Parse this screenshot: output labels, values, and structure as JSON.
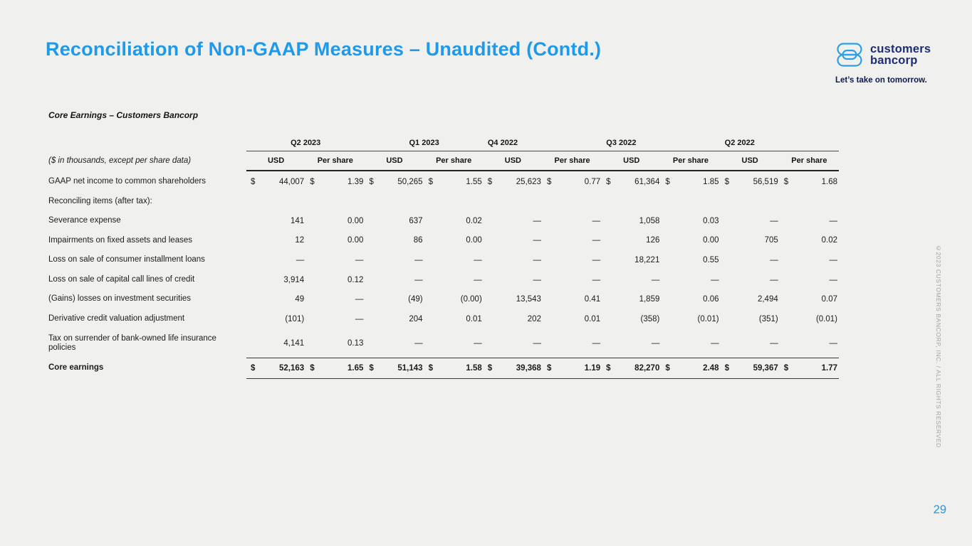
{
  "page": {
    "title": "Reconciliation of Non-GAAP Measures – Unaudited (Contd.)",
    "page_number": "29",
    "copyright": "©2023 CUSTOMERS BANCORP, INC. / ALL RIGHTS RESERVED",
    "background_color": "#F0F0EE",
    "accent_blue": "#1E9AEA"
  },
  "logo": {
    "icon": "customers-bancorp-mark",
    "wordmark_line1": "customers",
    "wordmark_line2": "bancorp",
    "tagline": "Let’s take on tomorrow.",
    "wordmark_color": "#1D2E76",
    "icon_color": "#2D9FE6"
  },
  "table": {
    "section_title": "Core Earnings – Customers Bancorp",
    "units_note": "($ in thousands, except per share data)",
    "quarters": [
      "Q2 2023",
      "Q1 2023",
      "Q4 2022",
      "Q3 2022",
      "Q2 2022"
    ],
    "subheaders": [
      "USD",
      "Per share"
    ],
    "rows": [
      {
        "label": "GAAP net income to common shareholders",
        "dollar": true,
        "total": false,
        "values": [
          "44,007",
          "1.39",
          "50,265",
          "1.55",
          "25,623",
          "0.77",
          "61,364",
          "1.85",
          "56,519",
          "1.68"
        ]
      },
      {
        "label": "Reconciling items (after tax):",
        "dollar": false,
        "total": false,
        "values": null
      },
      {
        "label": "Severance expense",
        "dollar": false,
        "total": false,
        "values": [
          "141",
          "0.00",
          "637",
          "0.02",
          "—",
          "—",
          "1,058",
          "0.03",
          "—",
          "—"
        ]
      },
      {
        "label": "Impairments on fixed assets and leases",
        "dollar": false,
        "total": false,
        "values": [
          "12",
          "0.00",
          "86",
          "0.00",
          "—",
          "—",
          "126",
          "0.00",
          "705",
          "0.02"
        ]
      },
      {
        "label": "Loss on sale of consumer installment loans",
        "dollar": false,
        "total": false,
        "values": [
          "—",
          "—",
          "—",
          "—",
          "—",
          "—",
          "18,221",
          "0.55",
          "—",
          "—"
        ]
      },
      {
        "label": "Loss on sale of capital call lines of credit",
        "dollar": false,
        "total": false,
        "values": [
          "3,914",
          "0.12",
          "—",
          "—",
          "—",
          "—",
          "—",
          "—",
          "—",
          "—"
        ]
      },
      {
        "label": "(Gains) losses on investment securities",
        "dollar": false,
        "total": false,
        "values": [
          "49",
          "—",
          "(49)",
          "(0.00)",
          "13,543",
          "0.41",
          "1,859",
          "0.06",
          "2,494",
          "0.07"
        ]
      },
      {
        "label": "Derivative credit valuation adjustment",
        "dollar": false,
        "total": false,
        "values": [
          "(101)",
          "—",
          "204",
          "0.01",
          "202",
          "0.01",
          "(358)",
          "(0.01)",
          "(351)",
          "(0.01)"
        ]
      },
      {
        "label": "Tax on surrender of bank-owned life insurance policies",
        "dollar": false,
        "total": false,
        "values": [
          "4,141",
          "0.13",
          "—",
          "—",
          "—",
          "—",
          "—",
          "—",
          "—",
          "—"
        ]
      },
      {
        "label": "Core earnings",
        "dollar": true,
        "total": true,
        "values": [
          "52,163",
          "1.65",
          "51,143",
          "1.58",
          "39,368",
          "1.19",
          "82,270",
          "2.48",
          "59,367",
          "1.77"
        ]
      }
    ]
  }
}
